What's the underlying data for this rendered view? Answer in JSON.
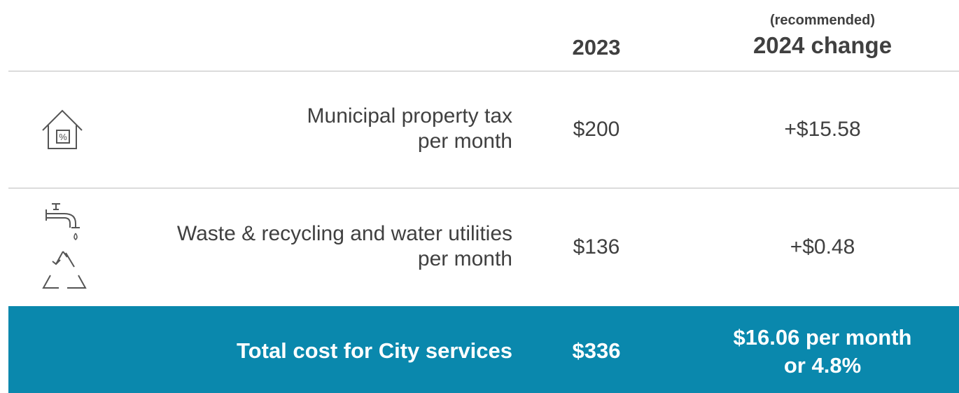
{
  "header": {
    "year": "2023",
    "note": "(recommended)",
    "change": "2024 change"
  },
  "rows": [
    {
      "label": [
        "Municipal property tax",
        "per month"
      ],
      "year": "$200",
      "change": "+$15.58"
    },
    {
      "label": [
        "Waste & recycling and water utilities",
        "per month"
      ],
      "year": "$136",
      "change": "+$0.48"
    }
  ],
  "total": {
    "label": "Total cost for City services",
    "year": "$336",
    "change": [
      "$16.06 per month",
      "or 4.8%"
    ]
  }
}
